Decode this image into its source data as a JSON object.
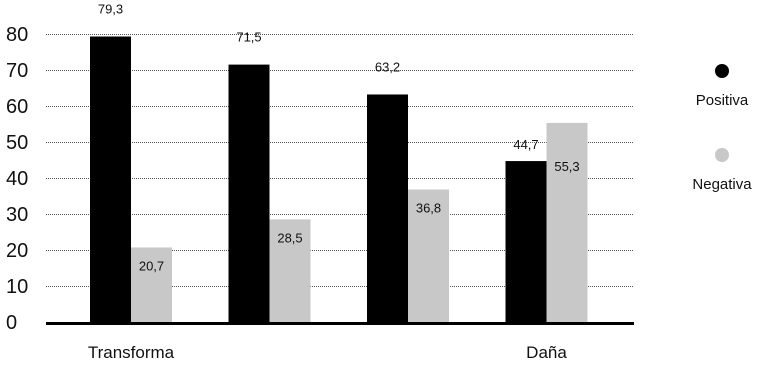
{
  "chart_data": {
    "type": "bar",
    "categories": [
      "Transforma",
      "",
      "",
      "Daña"
    ],
    "series": [
      {
        "name": "Positiva",
        "color": "#000000",
        "values": [
          79.3,
          71.5,
          63.2,
          44.7
        ],
        "labels": [
          "79,3",
          "71,5",
          "63,2",
          "44,7"
        ]
      },
      {
        "name": "Negativa",
        "color": "#c8c8c8",
        "values": [
          20.7,
          28.5,
          36.8,
          55.3
        ],
        "labels": [
          "20,7",
          "28,5",
          "36,8",
          "55,3"
        ]
      }
    ],
    "yticks": [
      "0",
      "10",
      "20",
      "30",
      "40",
      "50",
      "60",
      "70",
      "80"
    ],
    "ylim": [
      0,
      80
    ],
    "grid": "dotted",
    "legend": "right"
  }
}
